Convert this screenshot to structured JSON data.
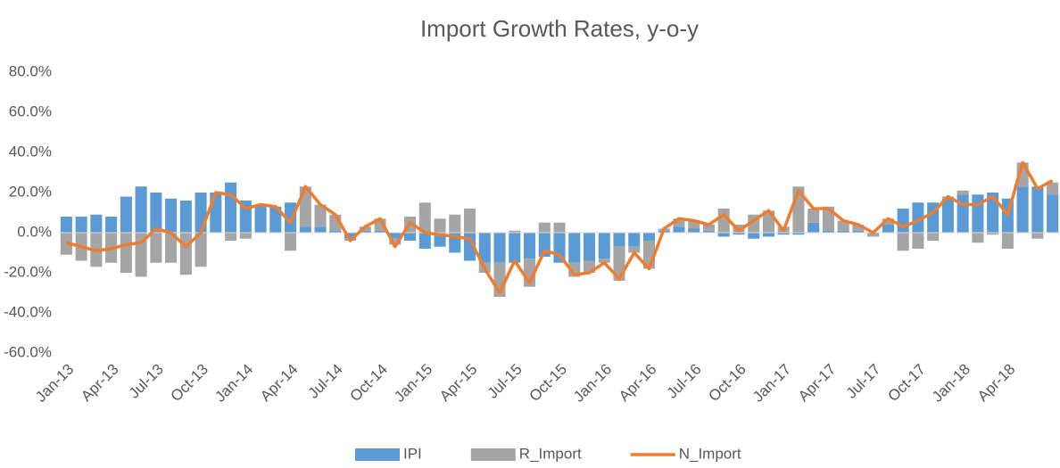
{
  "chart_data": {
    "type": "bar",
    "title": "Import Growth Rates, y-o-y",
    "categories": [
      "Jan-13",
      null,
      null,
      "Apr-13",
      null,
      null,
      "Jul-13",
      null,
      null,
      "Oct-13",
      null,
      null,
      "Jan-14",
      null,
      null,
      "Apr-14",
      null,
      null,
      "Jul-14",
      null,
      null,
      "Oct-14",
      null,
      null,
      "Jan-15",
      null,
      null,
      "Apr-15",
      null,
      null,
      "Jul-15",
      null,
      null,
      "Oct-15",
      null,
      null,
      "Jan-16",
      null,
      null,
      "Apr-16",
      null,
      null,
      "Jul-16",
      null,
      null,
      "Oct-16",
      null,
      null,
      "Jan-17",
      null,
      null,
      "Apr-17",
      null,
      null,
      "Jul-17",
      null,
      null,
      "Oct-17",
      null,
      null,
      "Jan-18",
      null,
      null,
      "Apr-18",
      null,
      null,
      null
    ],
    "series": [
      {
        "name": "IPI",
        "color": "#5b9bd5",
        "values": [
          8,
          8,
          9,
          8,
          18,
          23,
          20,
          17,
          16,
          20,
          20,
          25,
          16,
          14,
          13,
          15,
          3,
          3,
          1,
          -3,
          1,
          1,
          -3,
          -4,
          -8,
          -7,
          -10,
          -14,
          -15,
          -15,
          -15,
          -13,
          -12,
          -15,
          -15,
          -14,
          -13,
          -7,
          -7,
          -4,
          1,
          3,
          2,
          1,
          -2,
          -1,
          -3,
          -2,
          -1,
          -1,
          5,
          1,
          1,
          1,
          0,
          4,
          12,
          15,
          15,
          17,
          19,
          19,
          20,
          17,
          23,
          23,
          19
        ]
      },
      {
        "name": "R_Import",
        "color": "#a5a5a5",
        "values": [
          -11,
          -14,
          -17,
          -15,
          -20,
          -22,
          -15,
          -15,
          -21,
          -17,
          0,
          -4,
          -3,
          0,
          0,
          -9,
          20,
          11,
          8,
          -1,
          2,
          6,
          -3,
          8,
          15,
          7,
          9,
          12,
          -5,
          -17,
          1,
          -14,
          5,
          5,
          -7,
          -6,
          -2,
          -17,
          -3,
          -14,
          1,
          4,
          4,
          3,
          12,
          4,
          9,
          11,
          3,
          23,
          7,
          12,
          5,
          3,
          -2,
          3,
          -9,
          -8,
          -4,
          1,
          2,
          -5,
          -1,
          -8,
          12,
          -3,
          6
        ]
      },
      {
        "name": "N_Import",
        "color": "#ed7d31",
        "type": "line",
        "values": [
          -5,
          -7,
          -9,
          -8,
          -6,
          -5,
          2,
          0,
          -7,
          0,
          20,
          19,
          12,
          14,
          13,
          5,
          23,
          14,
          9,
          -4,
          3,
          7,
          -7,
          5,
          0,
          -1,
          -2,
          -3,
          -18,
          -30,
          -14,
          -25,
          -9,
          -11,
          -21,
          -20,
          -15,
          -23,
          -10,
          -18,
          2,
          7,
          6,
          4,
          9,
          1,
          6,
          11,
          1,
          21,
          12,
          12,
          6,
          4,
          0,
          7,
          3,
          6,
          10,
          18,
          14,
          14,
          18,
          9,
          35,
          22,
          26
        ]
      }
    ],
    "stacked": true,
    "ylim": [
      -60,
      80
    ],
    "yticks": [
      {
        "value": -60,
        "label": "-60.0%"
      },
      {
        "value": -40,
        "label": "-40.0%"
      },
      {
        "value": -20,
        "label": "-20.0%"
      },
      {
        "value": 0,
        "label": "0.0%"
      },
      {
        "value": 20,
        "label": "20.0%"
      },
      {
        "value": 40,
        "label": "40.0%"
      },
      {
        "value": 60,
        "label": "60.0%"
      },
      {
        "value": 80,
        "label": "80.0%"
      }
    ],
    "legend": "bottom"
  }
}
